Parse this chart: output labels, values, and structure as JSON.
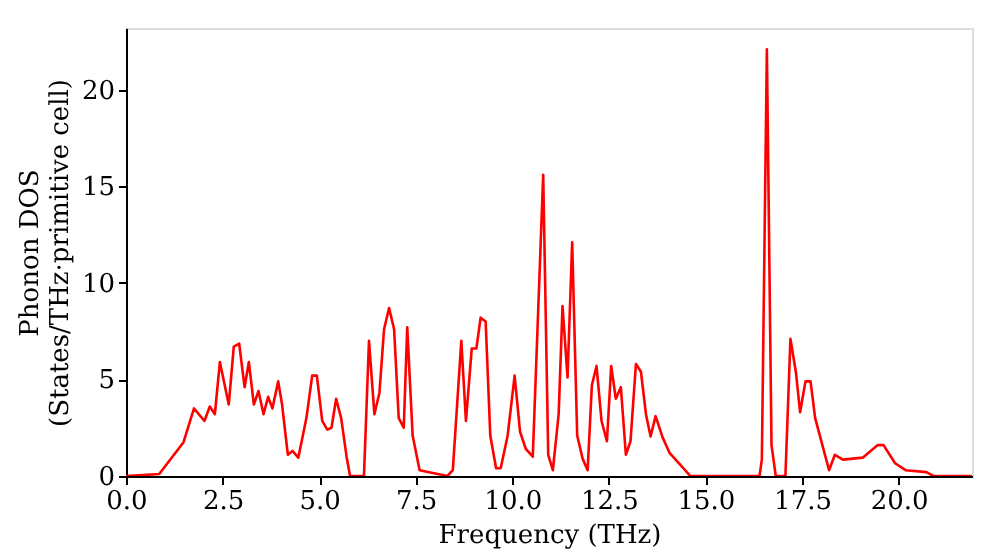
{
  "chart_data": {
    "type": "line",
    "xlabel": "Frequency (THz)",
    "ylabel": "Phonon DOS\n(States/THz·primitive cell)",
    "xlim": [
      0,
      21.9
    ],
    "ylim": [
      0,
      23.2
    ],
    "xticks": [
      {
        "value": 0,
        "label": "0.0"
      },
      {
        "value": 2.5,
        "label": "2.5"
      },
      {
        "value": 5,
        "label": "5.0"
      },
      {
        "value": 7.5,
        "label": "7.5"
      },
      {
        "value": 10,
        "label": "10.0"
      },
      {
        "value": 12.5,
        "label": "12.5"
      },
      {
        "value": 15,
        "label": "15.0"
      },
      {
        "value": 17.5,
        "label": "17.5"
      },
      {
        "value": 20,
        "label": "20.0"
      }
    ],
    "yticks": [
      0,
      5,
      10,
      15,
      20
    ],
    "grid": false,
    "line_style": "solid",
    "marker": "none",
    "series": [
      {
        "color": "#ff0000",
        "x": [
          0,
          0.86,
          1.49,
          1.76,
          2.03,
          2.17,
          2.3,
          2.43,
          2.66,
          2.79,
          2.93,
          3.07,
          3.18,
          3.31,
          3.43,
          3.56,
          3.68,
          3.79,
          3.94,
          4.04,
          4.19,
          4.31,
          4.46,
          4.67,
          4.82,
          4.94,
          5.08,
          5.21,
          5.32,
          5.44,
          5.57,
          5.71,
          5.8,
          6.16,
          6.29,
          6.43,
          6.56,
          6.68,
          6.81,
          6.94,
          7.06,
          7.19,
          7.28,
          7.42,
          7.6,
          8.32,
          8.46,
          8.68,
          8.8,
          8.95,
          9.07,
          9.18,
          9.31,
          9.43,
          9.58,
          9.7,
          9.88,
          10.06,
          10.2,
          10.35,
          10.53,
          10.8,
          10.93,
          11.05,
          11.2,
          11.3,
          11.43,
          11.55,
          11.68,
          11.82,
          11.95,
          12.06,
          12.18,
          12.31,
          12.45,
          12.56,
          12.68,
          12.81,
          12.94,
          13.06,
          13.2,
          13.33,
          13.46,
          13.58,
          13.71,
          13.89,
          14.07,
          14.61,
          16.4,
          16.46,
          16.59,
          16.71,
          16.82,
          17.07,
          17.2,
          17.34,
          17.45,
          17.59,
          17.72,
          17.84,
          18.2,
          18.35,
          18.56,
          19.07,
          19.46,
          19.61,
          19.91,
          20.18,
          20.72,
          20.9,
          21.9
        ],
        "values": [
          0,
          0.1,
          1.75,
          3.5,
          2.85,
          3.6,
          3.2,
          5.9,
          3.7,
          6.7,
          6.85,
          4.6,
          5.9,
          3.7,
          4.4,
          3.2,
          4.1,
          3.5,
          4.9,
          3.7,
          1.1,
          1.3,
          0.95,
          3.0,
          5.2,
          5.2,
          2.85,
          2.4,
          2.5,
          4.0,
          3.0,
          1.0,
          0,
          0,
          7.0,
          3.2,
          4.3,
          7.6,
          8.7,
          7.6,
          3.0,
          2.5,
          7.7,
          2.1,
          0.3,
          0,
          0.3,
          7.0,
          2.85,
          6.6,
          6.6,
          8.2,
          8.0,
          2.1,
          0.4,
          0.4,
          2.1,
          5.2,
          2.3,
          1.4,
          1.0,
          15.6,
          1.1,
          0.3,
          3.2,
          8.8,
          5.1,
          12.1,
          2.1,
          0.9,
          0.3,
          4.7,
          5.7,
          2.85,
          1.8,
          5.7,
          4.0,
          4.6,
          1.1,
          1.8,
          5.8,
          5.4,
          3.2,
          2.05,
          3.1,
          2.0,
          1.2,
          0,
          0,
          0.85,
          22.1,
          1.6,
          0,
          0,
          7.1,
          5.4,
          3.3,
          4.9,
          4.9,
          3.0,
          0.3,
          1.1,
          0.85,
          0.95,
          1.6,
          1.6,
          0.66,
          0.3,
          0.2,
          0,
          0
        ]
      }
    ]
  }
}
